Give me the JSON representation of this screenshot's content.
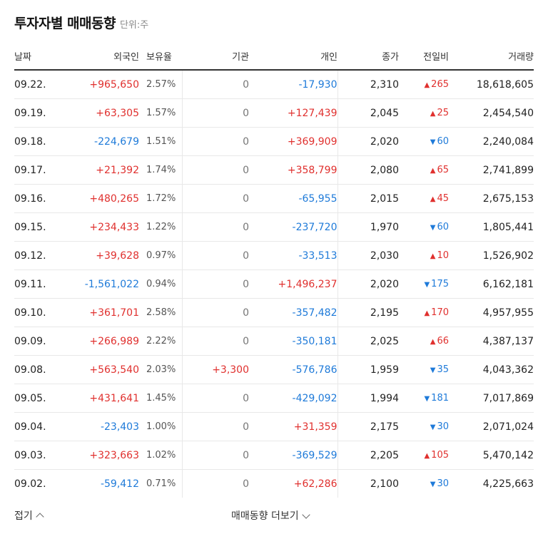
{
  "header": {
    "title": "투자자별 매매동향",
    "unit": "단위:주"
  },
  "columns": {
    "date": "날짜",
    "foreign": "외국인",
    "holding": "보유율",
    "institution": "기관",
    "individual": "개인",
    "close": "종가",
    "change": "전일비",
    "volume": "거래량"
  },
  "colors": {
    "up": "#e0302e",
    "down": "#1e7ad9"
  },
  "rows": [
    {
      "date": "09.22.",
      "foreign": "+965,650",
      "holding": "2.57%",
      "institution": "0",
      "individual": "-17,930",
      "close": "2,310",
      "change": "265",
      "change_dir": "up",
      "volume": "18,618,605"
    },
    {
      "date": "09.19.",
      "foreign": "+63,305",
      "holding": "1.57%",
      "institution": "0",
      "individual": "+127,439",
      "close": "2,045",
      "change": "25",
      "change_dir": "up",
      "volume": "2,454,540"
    },
    {
      "date": "09.18.",
      "foreign": "-224,679",
      "holding": "1.51%",
      "institution": "0",
      "individual": "+369,909",
      "close": "2,020",
      "change": "60",
      "change_dir": "down",
      "volume": "2,240,084"
    },
    {
      "date": "09.17.",
      "foreign": "+21,392",
      "holding": "1.74%",
      "institution": "0",
      "individual": "+358,799",
      "close": "2,080",
      "change": "65",
      "change_dir": "up",
      "volume": "2,741,899"
    },
    {
      "date": "09.16.",
      "foreign": "+480,265",
      "holding": "1.72%",
      "institution": "0",
      "individual": "-65,955",
      "close": "2,015",
      "change": "45",
      "change_dir": "up",
      "volume": "2,675,153"
    },
    {
      "date": "09.15.",
      "foreign": "+234,433",
      "holding": "1.22%",
      "institution": "0",
      "individual": "-237,720",
      "close": "1,970",
      "change": "60",
      "change_dir": "down",
      "volume": "1,805,441"
    },
    {
      "date": "09.12.",
      "foreign": "+39,628",
      "holding": "0.97%",
      "institution": "0",
      "individual": "-33,513",
      "close": "2,030",
      "change": "10",
      "change_dir": "up",
      "volume": "1,526,902"
    },
    {
      "date": "09.11.",
      "foreign": "-1,561,022",
      "holding": "0.94%",
      "institution": "0",
      "individual": "+1,496,237",
      "close": "2,020",
      "change": "175",
      "change_dir": "down",
      "volume": "6,162,181"
    },
    {
      "date": "09.10.",
      "foreign": "+361,701",
      "holding": "2.58%",
      "institution": "0",
      "individual": "-357,482",
      "close": "2,195",
      "change": "170",
      "change_dir": "up",
      "volume": "4,957,955"
    },
    {
      "date": "09.09.",
      "foreign": "+266,989",
      "holding": "2.22%",
      "institution": "0",
      "individual": "-350,181",
      "close": "2,025",
      "change": "66",
      "change_dir": "up",
      "volume": "4,387,137"
    },
    {
      "date": "09.08.",
      "foreign": "+563,540",
      "holding": "2.03%",
      "institution": "+3,300",
      "individual": "-576,786",
      "close": "1,959",
      "change": "35",
      "change_dir": "down",
      "volume": "4,043,362"
    },
    {
      "date": "09.05.",
      "foreign": "+431,641",
      "holding": "1.45%",
      "institution": "0",
      "individual": "-429,092",
      "close": "1,994",
      "change": "181",
      "change_dir": "down",
      "volume": "7,017,869"
    },
    {
      "date": "09.04.",
      "foreign": "-23,403",
      "holding": "1.00%",
      "institution": "0",
      "individual": "+31,359",
      "close": "2,175",
      "change": "30",
      "change_dir": "down",
      "volume": "2,071,024"
    },
    {
      "date": "09.03.",
      "foreign": "+323,663",
      "holding": "1.02%",
      "institution": "0",
      "individual": "-369,529",
      "close": "2,205",
      "change": "105",
      "change_dir": "up",
      "volume": "5,470,142"
    },
    {
      "date": "09.02.",
      "foreign": "-59,412",
      "holding": "0.71%",
      "institution": "0",
      "individual": "+62,286",
      "close": "2,100",
      "change": "30",
      "change_dir": "down",
      "volume": "4,225,663"
    }
  ],
  "footer": {
    "fold_label": "접기",
    "more_label": "매매동향 더보기"
  }
}
